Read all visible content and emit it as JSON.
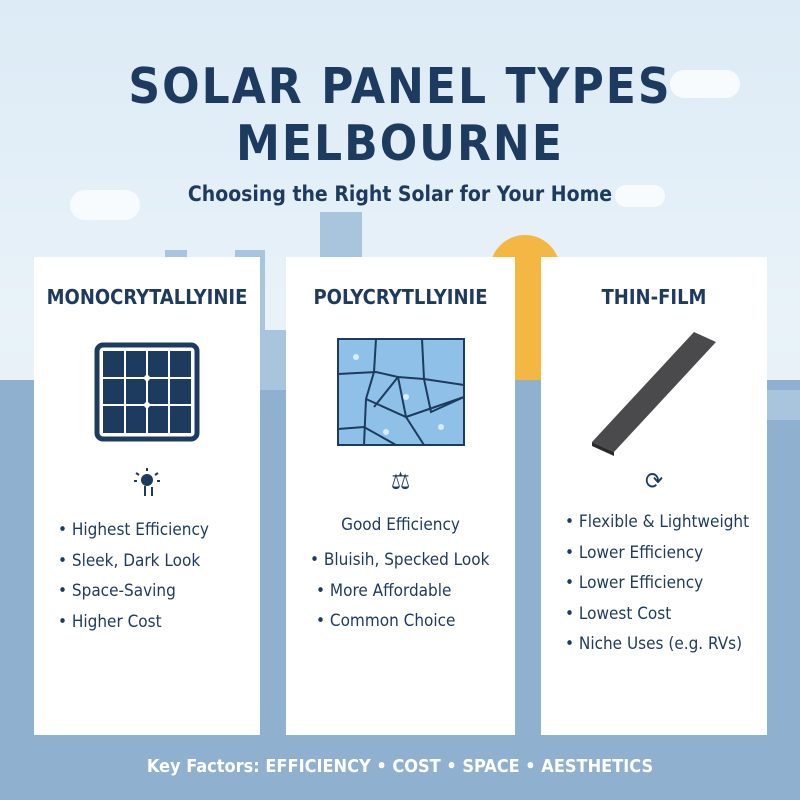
{
  "header": {
    "title_line1": "SOLAR PANEL TYPES",
    "title_line2": "MELBOURNE",
    "subtitle": "Choosing the Right Solar for Your Home"
  },
  "cards": [
    {
      "title": "MONOCRYTALLYINIE",
      "image": "dark-mono-panel",
      "icon": "sun-arrows-up-icon",
      "items": [
        "Highest Efficiency",
        "Sleek, Dark Look",
        "Space-Saving",
        "Higher Cost"
      ]
    },
    {
      "title": "POLYCRYTLLYINIE",
      "image": "blue-speckled-poly-panel",
      "icon": "balance-scale-icon",
      "lead": "Good Efficiency",
      "items": [
        "Bluisih, Specked Look",
        "More Affordable",
        "Common Choice"
      ]
    },
    {
      "title": "THIN-FILM",
      "image": "flexible-thin-film-strip",
      "icon": "refresh-icon",
      "items": [
        "Flexible & Lightweight",
        "Lower Efficiency",
        "Lower Efficiency",
        "Lowest Cost",
        "Niche Uses (e.g. RVs)"
      ]
    }
  ],
  "footer": {
    "text": "Key Factors: EFFICIENCY • COST • SPACE • AESTHETICS"
  },
  "colors": {
    "navy": "#1d3a5f",
    "sky": "#dcebf6",
    "skyline": "#8fb0cf",
    "sun": "#f5b744"
  }
}
